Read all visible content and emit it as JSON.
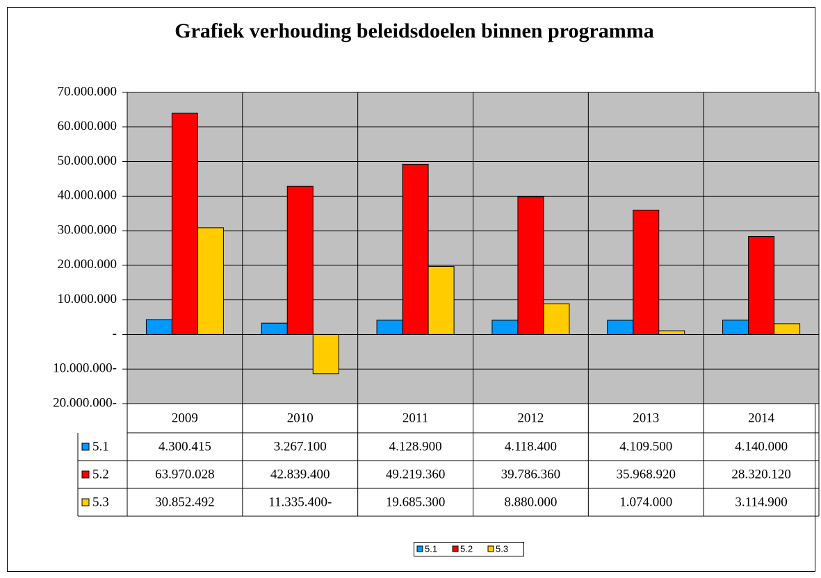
{
  "chart_data": {
    "type": "bar",
    "title": "Grafiek verhouding beleidsdoelen binnen programma",
    "categories": [
      "2009",
      "2010",
      "2011",
      "2012",
      "2013",
      "2014"
    ],
    "series": [
      {
        "name": "5.1",
        "color": "#0099ff",
        "values": [
          4300415,
          3267100,
          4128900,
          4118400,
          4109500,
          4140000
        ],
        "value_labels": [
          "4.300.415",
          "3.267.100",
          "4.128.900",
          "4.118.400",
          "4.109.500",
          "4.140.000"
        ]
      },
      {
        "name": "5.2",
        "color": "#ff0000",
        "values": [
          63970028,
          42839400,
          49219360,
          39786360,
          35968920,
          28320120
        ],
        "value_labels": [
          "63.970.028",
          "42.839.400",
          "49.219.360",
          "39.786.360",
          "35.968.920",
          "28.320.120"
        ]
      },
      {
        "name": "5.3",
        "color": "#ffcc00",
        "values": [
          30852492,
          -11335400,
          19685300,
          8880000,
          1074000,
          3114900
        ],
        "value_labels": [
          "30.852.492",
          "11.335.400-",
          "19.685.300",
          "8.880.000",
          "1.074.000",
          "3.114.900"
        ]
      }
    ],
    "ylim": [
      -20000000,
      70000000
    ],
    "yticks": [
      {
        "value": -20000000,
        "label": "20.000.000-"
      },
      {
        "value": -10000000,
        "label": "10.000.000-"
      },
      {
        "value": 0,
        "label": "-"
      },
      {
        "value": 10000000,
        "label": "10.000.000"
      },
      {
        "value": 20000000,
        "label": "20.000.000"
      },
      {
        "value": 30000000,
        "label": "30.000.000"
      },
      {
        "value": 40000000,
        "label": "40.000.000"
      },
      {
        "value": 50000000,
        "label": "50.000.000"
      },
      {
        "value": 60000000,
        "label": "60.000.000"
      },
      {
        "value": 70000000,
        "label": "70.000.000"
      }
    ],
    "grid": true,
    "legend": "bottom"
  }
}
